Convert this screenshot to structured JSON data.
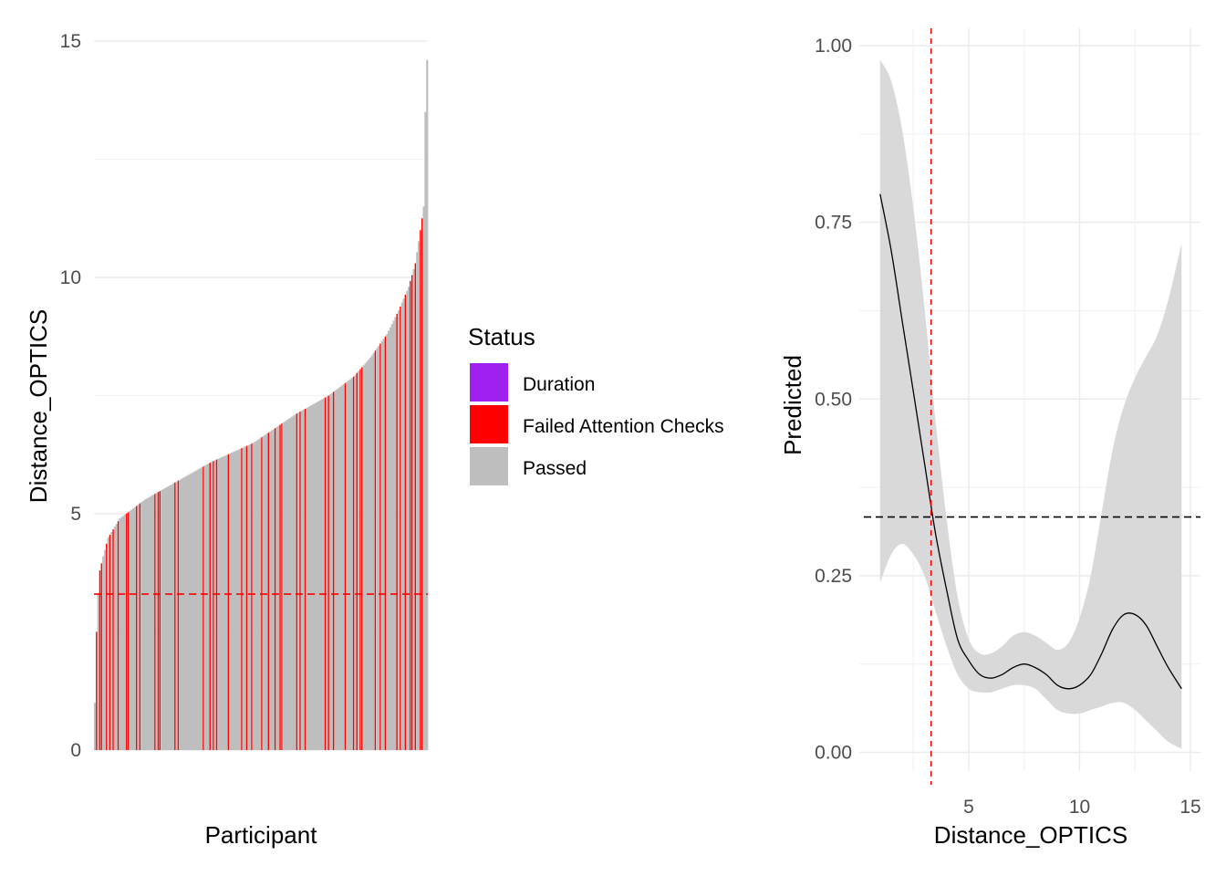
{
  "chart_data": [
    {
      "type": "bar",
      "xlabel": "Participant",
      "ylabel": "Distance_OPTICS",
      "ylim": [
        0,
        15
      ],
      "yticks": [
        0,
        5,
        10,
        15
      ],
      "grid": true,
      "n_participants": 200,
      "sorted": "ascending",
      "value_profile": [
        [
          0,
          1.0
        ],
        [
          1,
          2.5
        ],
        [
          2,
          3.3
        ],
        [
          3,
          3.8
        ],
        [
          5,
          4.1
        ],
        [
          8,
          4.5
        ],
        [
          15,
          4.9
        ],
        [
          30,
          5.3
        ],
        [
          50,
          5.7
        ],
        [
          70,
          6.1
        ],
        [
          95,
          6.5
        ],
        [
          120,
          7.1
        ],
        [
          140,
          7.5
        ],
        [
          155,
          7.9
        ],
        [
          165,
          8.3
        ],
        [
          175,
          8.8
        ],
        [
          182,
          9.3
        ],
        [
          188,
          9.8
        ],
        [
          192,
          10.3
        ],
        [
          195,
          11.0
        ],
        [
          197,
          11.5
        ],
        [
          198,
          13.5
        ],
        [
          199,
          14.6
        ]
      ],
      "failed_attention_indices": [
        1,
        3,
        4,
        7,
        9,
        11,
        14,
        19,
        20,
        25,
        27,
        36,
        38,
        39,
        48,
        50,
        65,
        69,
        71,
        73,
        80,
        88,
        91,
        94,
        100,
        104,
        108,
        111,
        112,
        121,
        123,
        126,
        138,
        140,
        143,
        150,
        155,
        157,
        159,
        160,
        168,
        171,
        174,
        181,
        183,
        186,
        189,
        190,
        192,
        195,
        196
      ],
      "threshold": 3.3,
      "legend": {
        "title": "Status",
        "placement": "right",
        "entries": [
          {
            "label": "Duration",
            "color": "#A020F0"
          },
          {
            "label": "Failed Attention Checks",
            "color": "#FF0000"
          },
          {
            "label": "Passed",
            "color": "#BEBEBE"
          }
        ]
      }
    },
    {
      "type": "line",
      "xlabel": "Distance_OPTICS",
      "ylabel": "Predicted",
      "xlim": [
        1.0,
        15.0
      ],
      "ylim": [
        0.0,
        1.0
      ],
      "xticks": [
        5,
        10,
        15
      ],
      "yticks": [
        "0.00",
        "0.25",
        "0.50",
        "0.75",
        "1.00"
      ],
      "grid": true,
      "x": [
        1.0,
        1.5,
        2.0,
        2.5,
        3.0,
        3.5,
        4.0,
        4.5,
        5.0,
        5.5,
        6.0,
        6.5,
        7.0,
        7.5,
        8.0,
        8.5,
        9.0,
        9.5,
        10.0,
        10.5,
        11.0,
        11.5,
        12.0,
        12.5,
        13.0,
        13.5,
        14.0,
        14.6
      ],
      "y": [
        0.79,
        0.71,
        0.61,
        0.51,
        0.41,
        0.31,
        0.23,
        0.16,
        0.13,
        0.11,
        0.105,
        0.11,
        0.12,
        0.125,
        0.12,
        0.11,
        0.095,
        0.09,
        0.095,
        0.11,
        0.14,
        0.175,
        0.195,
        0.195,
        0.18,
        0.15,
        0.12,
        0.09
      ],
      "lower": [
        0.24,
        0.28,
        0.295,
        0.28,
        0.25,
        0.2,
        0.15,
        0.11,
        0.09,
        0.085,
        0.085,
        0.09,
        0.095,
        0.095,
        0.09,
        0.075,
        0.06,
        0.055,
        0.055,
        0.06,
        0.065,
        0.07,
        0.07,
        0.06,
        0.045,
        0.03,
        0.015,
        0.005
      ],
      "upper": [
        0.98,
        0.95,
        0.88,
        0.77,
        0.63,
        0.47,
        0.33,
        0.22,
        0.16,
        0.14,
        0.14,
        0.15,
        0.165,
        0.17,
        0.165,
        0.155,
        0.145,
        0.155,
        0.19,
        0.25,
        0.34,
        0.43,
        0.49,
        0.53,
        0.56,
        0.59,
        0.64,
        0.72
      ],
      "vline_x": 3.3,
      "hline_y": 0.333
    }
  ]
}
